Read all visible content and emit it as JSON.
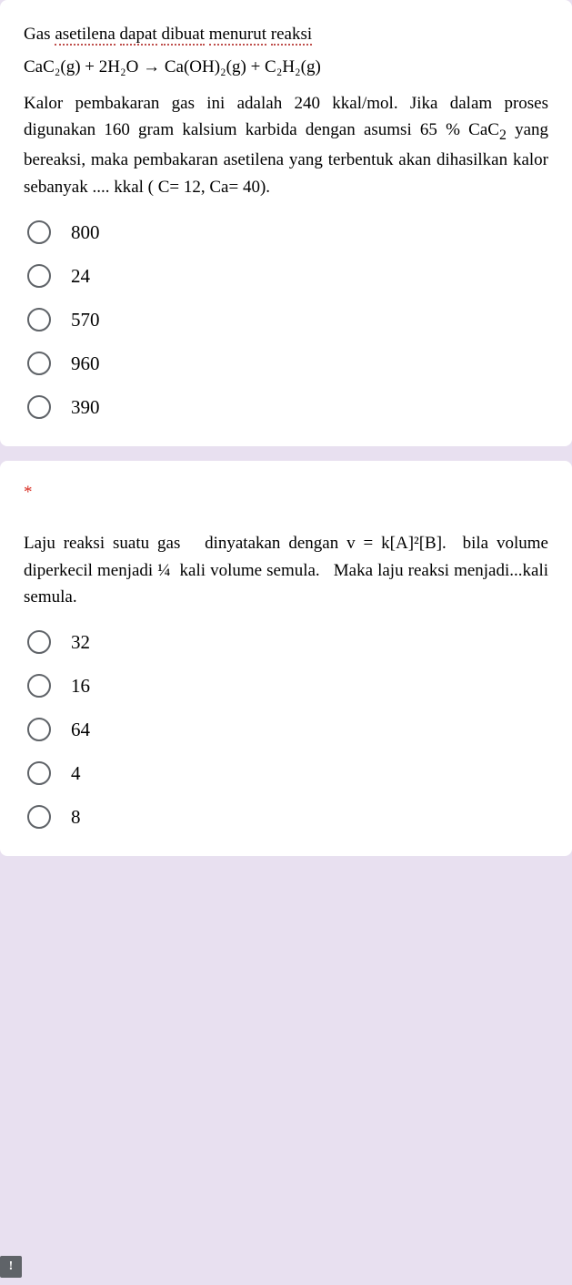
{
  "q1": {
    "intro": "Gas asetilena dapat dibuat menurut reaksi",
    "equation": "CaC₂(g) + 2H₂O → Ca(OH)₂(g) + C₂H₂(g)",
    "body": "Kalor pembakaran gas ini adalah 240 kkal/mol. Jika dalam proses digunakan 160 gram kalsium karbida dengan asumsi 65 % CaC₂ yang bereaksi, maka pembakaran asetilena yang terbentuk akan dihasilkan kalor sebanyak .... kkal ( C= 12, Ca= 40).",
    "options": [
      "800",
      "24",
      "570",
      "960",
      "390"
    ]
  },
  "q2": {
    "required": "*",
    "body": "Laju reaksi suatu gas   dinyatakan dengan v = k[A]²[B].  bila volume diperkecil menjadi ¼  kali volume semula.   Maka laju reaksi menjadi...kali semula.",
    "options": [
      "32",
      "16",
      "64",
      "4",
      "8"
    ]
  },
  "alert_icon": "!"
}
